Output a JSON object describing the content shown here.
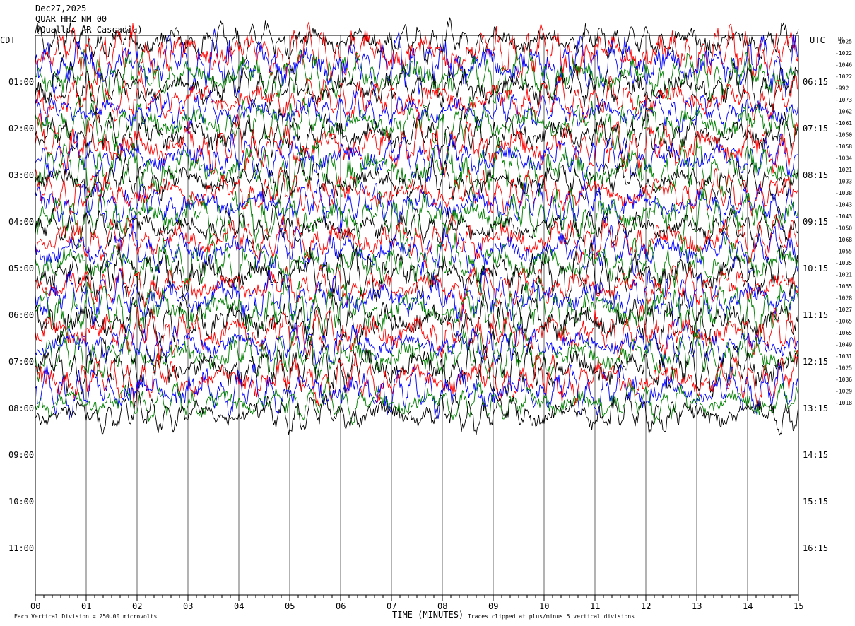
{
  "header": {
    "date": "Dec27,2025",
    "station": "QUAR HHZ NM 00",
    "location": "(Qualls, AR Cascadia)"
  },
  "chart_data": {
    "type": "line",
    "title": "",
    "xlabel": "TIME (MINUTES)",
    "left_tz": "CDT",
    "right_tz": "UTC",
    "dc_header": "DC",
    "x_range": [
      0,
      15
    ],
    "x_ticks": [
      "00",
      "01",
      "02",
      "03",
      "04",
      "05",
      "06",
      "07",
      "08",
      "09",
      "10",
      "11",
      "12",
      "13",
      "14",
      "15"
    ],
    "left_hours": [
      "01:00",
      "02:00",
      "03:00",
      "04:00",
      "05:00",
      "06:00",
      "07:00",
      "08:00",
      "09:00",
      "10:00",
      "11:00"
    ],
    "right_hours": [
      "06:15",
      "07:15",
      "08:15",
      "09:15",
      "10:15",
      "11:15",
      "12:15",
      "13:15",
      "14:15",
      "15:15",
      "16:15"
    ],
    "rows_per_hour": 4,
    "rows_shown": 48,
    "rows_with_data": 33,
    "dc_offsets": [
      -1025,
      -1022,
      -1046,
      -1022,
      -992,
      -1073,
      -1062,
      -1061,
      -1050,
      -1058,
      -1034,
      -1021,
      -1033,
      -1038,
      -1043,
      -1043,
      -1050,
      -1068,
      -1055,
      -1035,
      -1021,
      -1055,
      -1028,
      -1027,
      -1065,
      -1065,
      -1049,
      -1031,
      -1025,
      -1036,
      -1029,
      -1018
    ],
    "trace_colors": [
      "#000000",
      "#ff0000",
      "#0000ff",
      "#008000"
    ],
    "grid": "vertical every minute",
    "clipping_note": "Traces clipped at plus/minus 5 vertical divisions",
    "scale_note": "Each Vertical Division =  250.00 microvolts"
  }
}
